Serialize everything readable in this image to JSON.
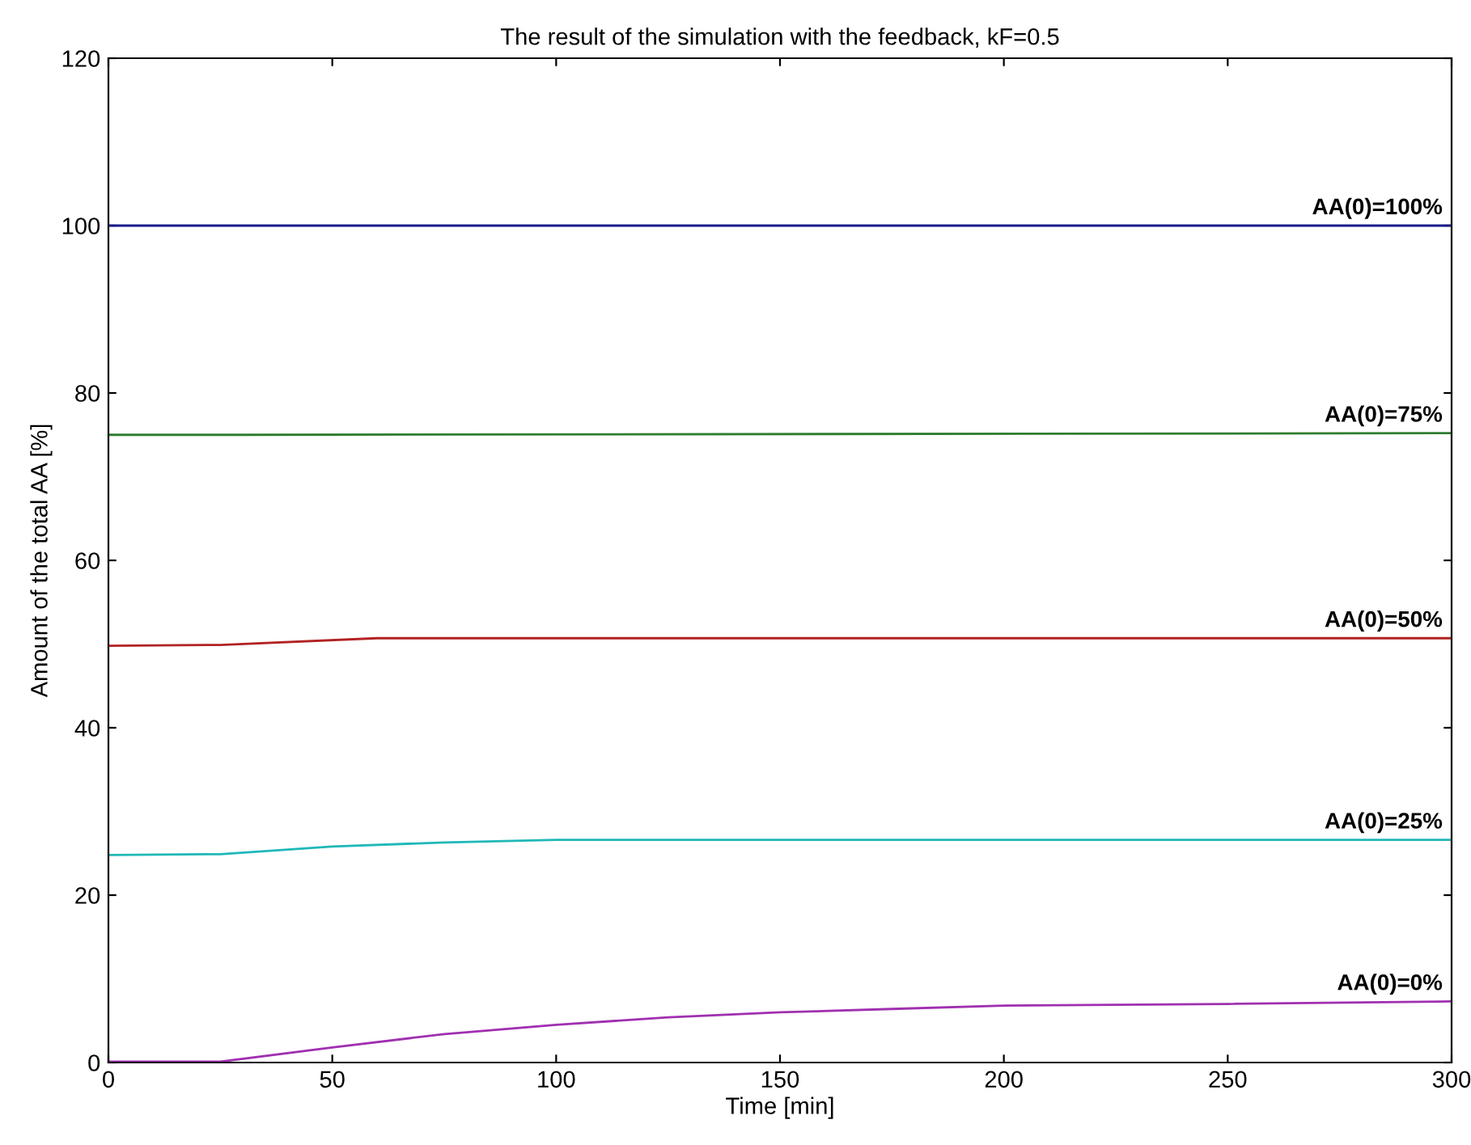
{
  "chart_data": {
    "type": "line",
    "title": "The result of the simulation with the feedback, kF=0.5",
    "xlabel": "Time [min]",
    "ylabel": "Amount of the total AA [%]",
    "xlim": [
      0,
      300
    ],
    "ylim": [
      0,
      120
    ],
    "xticks": [
      0,
      50,
      100,
      150,
      200,
      250,
      300
    ],
    "yticks": [
      0,
      20,
      40,
      60,
      80,
      100,
      120
    ],
    "grid": false,
    "legend": false,
    "series": [
      {
        "name": "AA(0)=100%",
        "color": "#1a1a8c",
        "x": [
          0,
          300
        ],
        "values": [
          100,
          100
        ]
      },
      {
        "name": "AA(0)=75%",
        "color": "#2e7d2e",
        "x": [
          0,
          30,
          300
        ],
        "values": [
          75,
          75,
          75.2
        ]
      },
      {
        "name": "AA(0)=50%",
        "color": "#b22222",
        "x": [
          0,
          25,
          60,
          300
        ],
        "values": [
          49.8,
          49.9,
          50.7,
          50.7
        ]
      },
      {
        "name": "AA(0)=25%",
        "color": "#20b8b8",
        "x": [
          0,
          25,
          50,
          75,
          100,
          300
        ],
        "values": [
          24.8,
          24.9,
          25.8,
          26.3,
          26.6,
          26.6
        ]
      },
      {
        "name": "AA(0)=0%",
        "color": "#a030b0",
        "x": [
          0,
          25,
          50,
          75,
          100,
          125,
          150,
          175,
          200,
          250,
          300
        ],
        "values": [
          0.1,
          0.1,
          1.8,
          3.4,
          4.5,
          5.4,
          6.0,
          6.4,
          6.8,
          7.0,
          7.3
        ]
      }
    ]
  }
}
